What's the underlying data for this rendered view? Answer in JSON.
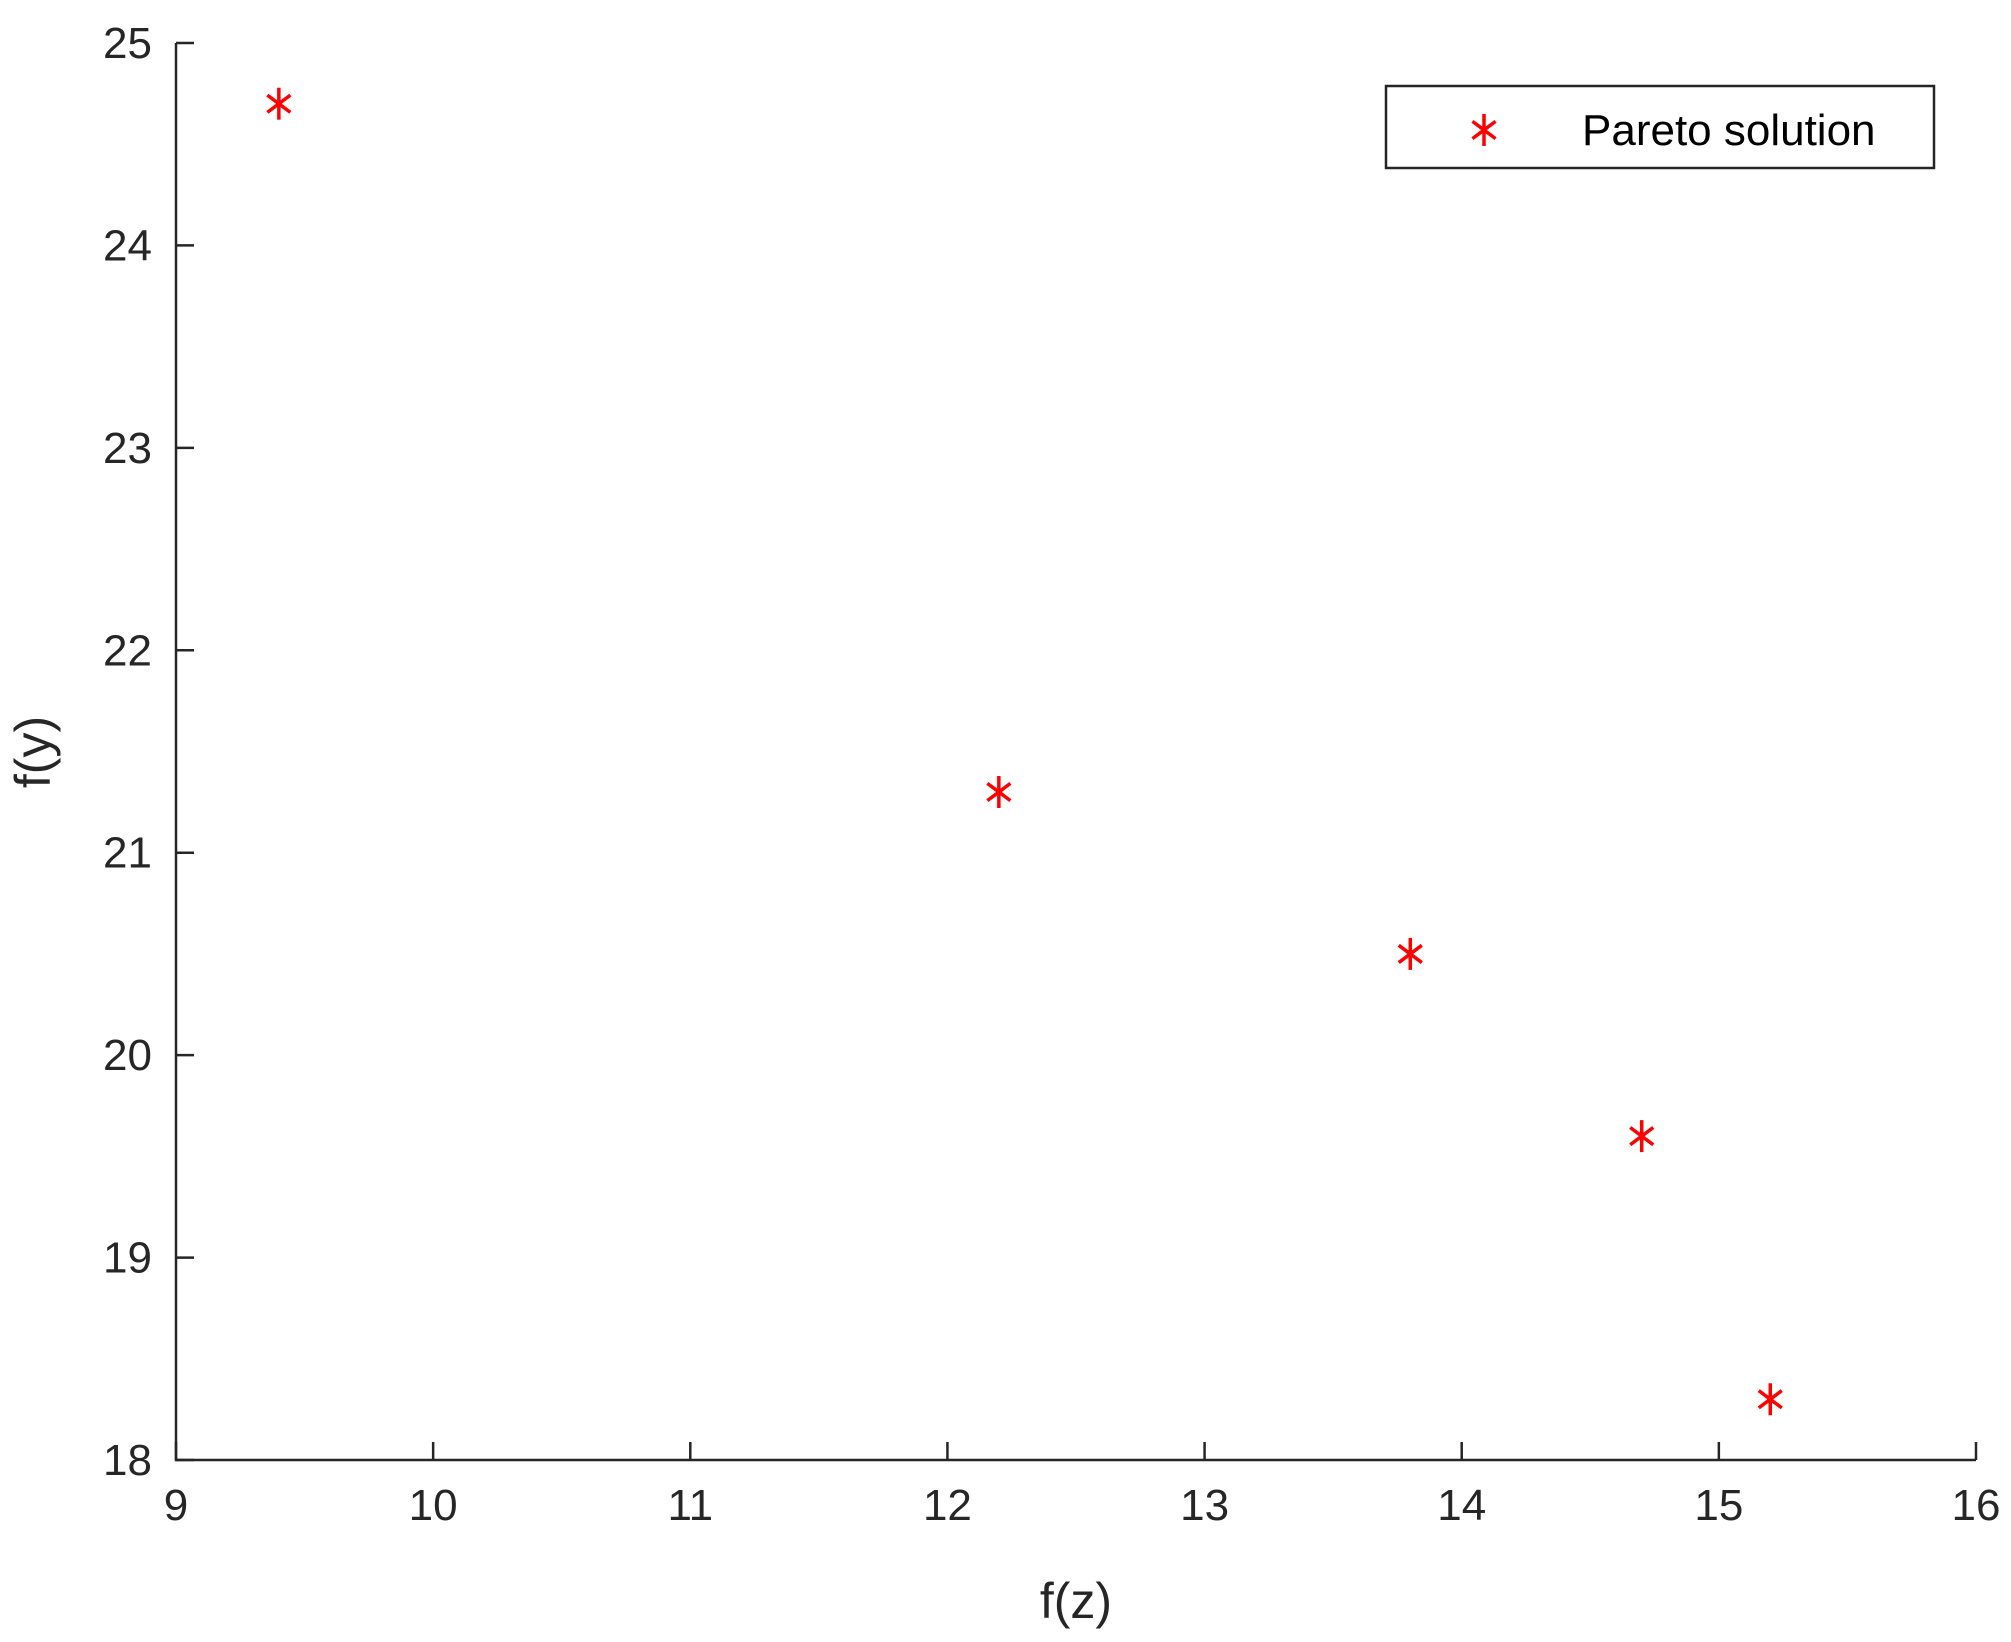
{
  "chart_data": {
    "type": "scatter",
    "title": "",
    "xlabel": "f(z)",
    "ylabel": "f(y)",
    "xlim": [
      9,
      16
    ],
    "ylim": [
      18,
      25
    ],
    "xticks": [
      9,
      10,
      11,
      12,
      13,
      14,
      15,
      16
    ],
    "yticks": [
      18,
      19,
      20,
      21,
      22,
      23,
      24,
      25
    ],
    "grid": false,
    "legend_position": "top-right",
    "marker": "asterisk",
    "series": [
      {
        "name": "Pareto solution",
        "color": "#ff0000",
        "points": [
          {
            "x": 9.4,
            "y": 24.7
          },
          {
            "x": 12.2,
            "y": 21.3
          },
          {
            "x": 13.8,
            "y": 20.5
          },
          {
            "x": 14.7,
            "y": 19.6
          },
          {
            "x": 15.2,
            "y": 18.3
          }
        ]
      }
    ]
  }
}
